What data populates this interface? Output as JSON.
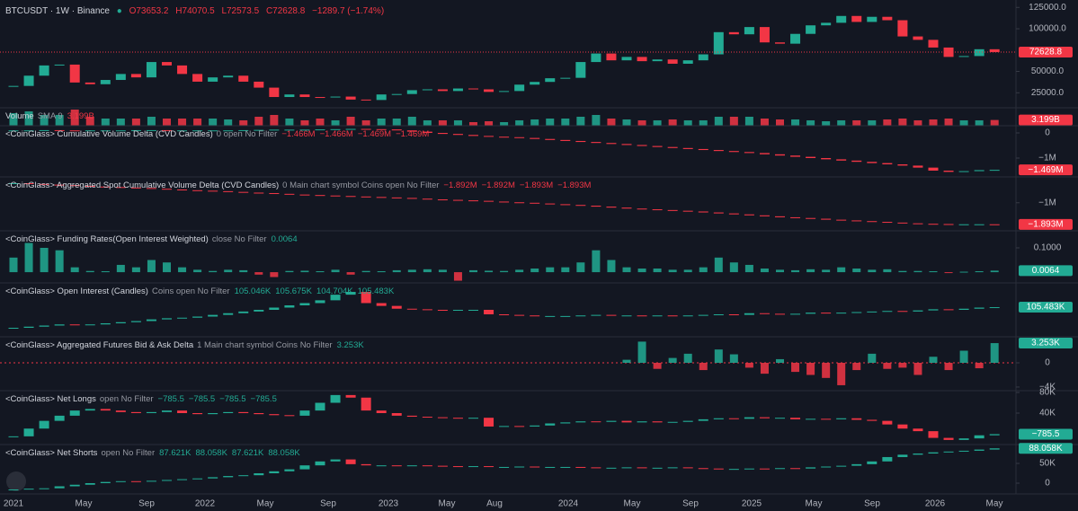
{
  "header": {
    "symbol": "BTCUSDT · 1W · Binance",
    "ohlc": [
      "O73653.2",
      "H74070.5",
      "L72573.5",
      "C72628.8",
      "−1289.7 (−1.74%)"
    ]
  },
  "theme": {
    "up": "#22ab94",
    "down": "#f23645"
  },
  "time_axis": {
    "labels": [
      "2021",
      "May",
      "Sep",
      "2022",
      "May",
      "Sep",
      "2023",
      "May",
      "Aug",
      "2024",
      "May",
      "Sep",
      "2025",
      "May",
      "Sep",
      "2026",
      "May"
    ]
  },
  "chart_data": [
    {
      "type": "candlestick",
      "values": [
        33000,
        45000,
        57000,
        58000,
        37000,
        35000,
        40000,
        47000,
        43000,
        61000,
        57000,
        47000,
        38000,
        43000,
        45000,
        38000,
        31000,
        20000,
        23000,
        20000,
        19500,
        20500,
        17000,
        16500,
        23000,
        23500,
        28000,
        29000,
        27000,
        30000,
        29000,
        26000,
        27000,
        34500,
        37700,
        42000,
        42500,
        61000,
        71000,
        63000,
        67000,
        62000,
        64000,
        59000,
        63000,
        70000,
        96000,
        93500,
        102000,
        84000,
        82500,
        94000,
        104000,
        107000,
        115000,
        108000,
        114000,
        110000,
        91000,
        87000,
        78000,
        67000,
        68000,
        76000,
        72628.8
      ],
      "ylim": [
        7400,
        133700
      ],
      "yticks": [
        {
          "value": 125000,
          "label": "125000.0"
        },
        {
          "value": 100000,
          "label": "100000.0"
        },
        {
          "value": 50000,
          "label": "50000.0"
        },
        {
          "value": 25000,
          "label": "25000.0"
        }
      ],
      "last_label": {
        "value": 72628.8,
        "label": "72628.8"
      },
      "label_color": "#f23645"
    },
    {
      "type": "bar",
      "title": "Volume",
      "params": "SMA 9",
      "legend_values": [
        "3.199B"
      ],
      "values": [
        7,
        8,
        6,
        6,
        9,
        5,
        4,
        4,
        4,
        5,
        4,
        4,
        4,
        4,
        3.5,
        3,
        5,
        6,
        4,
        3,
        4,
        3,
        5,
        3,
        4,
        4,
        5,
        3,
        3,
        3,
        2,
        2.5,
        2,
        3,
        3.5,
        4,
        4,
        5,
        6,
        4,
        3.5,
        3,
        3,
        3.5,
        3,
        3,
        5,
        5,
        5,
        4,
        3.5,
        3.5,
        3,
        2.5,
        3,
        3,
        3,
        3.5,
        4,
        3,
        3.5,
        4,
        3,
        3,
        3.199
      ],
      "ylim": [
        0,
        10
      ],
      "yticks": [],
      "last_label": {
        "value": 3.199,
        "label": "3.199B"
      },
      "label_color": "#f23645"
    },
    {
      "type": "candlestick",
      "title": "<CoinGlass> Cumulative Volume Delta (CVD Candles)",
      "params": "0 open No Filter",
      "legend_values": [
        "−1.466M",
        "−1.466M",
        "−1.469M",
        "−1.469M"
      ],
      "values": [
        0.1,
        0.1,
        0.11,
        0.1,
        0.09,
        0.1,
        0.1,
        0.1,
        0.11,
        0.11,
        0.1,
        0.1,
        0.1,
        0.1,
        0.1,
        0.11,
        0.12,
        0.13,
        0.13,
        0.13,
        0.14,
        0.15,
        0.16,
        0.15,
        0.14,
        0.1,
        0.05,
        0.0,
        -0.04,
        -0.08,
        -0.12,
        -0.15,
        -0.17,
        -0.2,
        -0.24,
        -0.28,
        -0.32,
        -0.36,
        -0.4,
        -0.44,
        -0.48,
        -0.52,
        -0.56,
        -0.6,
        -0.64,
        -0.68,
        -0.72,
        -0.76,
        -0.8,
        -0.85,
        -0.9,
        -0.95,
        -1.0,
        -1.05,
        -1.1,
        -1.15,
        -1.2,
        -1.25,
        -1.3,
        -1.38,
        -1.5,
        -1.55,
        -1.52,
        -1.48,
        -1.469
      ],
      "ylim": [
        -1.75,
        0.286
      ],
      "yticks": [
        0,
        {
          "value": -1,
          "label": "−1M"
        }
      ],
      "last_label": {
        "value": -1.469,
        "label": "−1.469M"
      },
      "label_color": "#f23645"
    },
    {
      "type": "candlestick",
      "title": "<CoinGlass> Aggregated Spot Cumulative Volume Delta (CVD Candles)",
      "params": "0 Main chart symbol Coins open No Filter",
      "legend_values": [
        "−1.892M",
        "−1.892M",
        "−1.893M",
        "−1.893M"
      ],
      "values": [
        -0.19,
        -0.22,
        -0.25,
        -0.27,
        -0.3,
        -0.33,
        -0.35,
        -0.37,
        -0.39,
        -0.42,
        -0.45,
        -0.48,
        -0.5,
        -0.52,
        -0.55,
        -0.58,
        -0.6,
        -0.63,
        -0.66,
        -0.68,
        -0.7,
        -0.72,
        -0.74,
        -0.76,
        -0.78,
        -0.8,
        -0.83,
        -0.86,
        -0.88,
        -0.9,
        -0.92,
        -0.95,
        -0.98,
        -1.0,
        -1.03,
        -1.06,
        -1.09,
        -1.12,
        -1.16,
        -1.2,
        -1.24,
        -1.27,
        -1.3,
        -1.33,
        -1.36,
        -1.4,
        -1.44,
        -1.48,
        -1.52,
        -1.56,
        -1.6,
        -1.63,
        -1.66,
        -1.7,
        -1.73,
        -1.76,
        -1.79,
        -1.82,
        -1.85,
        -1.87,
        -1.88,
        -1.89,
        -1.89,
        -1.89,
        -1.893
      ],
      "ylim": [
        -2.16,
        0.07
      ],
      "yticks": [
        {
          "value": -1,
          "label": "−1M"
        }
      ],
      "last_label": {
        "value": -1.893,
        "label": "−1.893M"
      },
      "label_color": "#f23645"
    },
    {
      "type": "bar",
      "title": "<CoinGlass> Funding Rates(Open Interest Weighted)",
      "params": "close No Filter",
      "legend_values": [
        "0.0064"
      ],
      "values": [
        0.06,
        0.12,
        0.1,
        0.09,
        0.02,
        0.005,
        0.004,
        0.03,
        0.02,
        0.05,
        0.04,
        0.02,
        0.01,
        0.005,
        0.01,
        0.008,
        -0.01,
        -0.02,
        0.005,
        0.006,
        0.004,
        0.01,
        -0.01,
        0.005,
        0.004,
        0.008,
        0.01,
        0.012,
        0.01,
        -0.035,
        0.008,
        0.006,
        0.005,
        0.01,
        0.015,
        0.02,
        0.02,
        0.04,
        0.09,
        0.05,
        0.02,
        0.015,
        0.015,
        0.01,
        0.01,
        0.02,
        0.06,
        0.04,
        0.03,
        0.015,
        0.01,
        0.008,
        0.012,
        0.01,
        0.02,
        0.015,
        0.01,
        0.012,
        0.005,
        0.005,
        0.004,
        -0.003,
        0.002,
        0.004,
        0.0064
      ],
      "ylim": [
        -0.044,
        0.17
      ],
      "yticks": [
        {
          "value": 0.1,
          "label": "0.1000"
        }
      ],
      "last_label": {
        "value": 0.0064,
        "label": "0.0064"
      },
      "label_color": "#22ab94"
    },
    {
      "type": "candlestick",
      "title": "<CoinGlass> Open Interest (Candles)",
      "params": "Coins open No Filter",
      "legend_values": [
        "105.046K",
        "105.675K",
        "104.704K",
        "105.483K"
      ],
      "values": [
        32,
        36,
        40,
        44,
        42,
        44,
        48,
        52,
        56,
        62,
        66,
        68,
        72,
        78,
        84,
        90,
        96,
        104,
        112,
        120,
        130,
        150,
        160,
        120,
        110,
        100,
        98,
        96,
        95,
        96,
        96,
        80,
        78,
        76,
        74,
        74,
        74,
        76,
        78,
        76,
        76,
        74,
        76,
        74,
        76,
        78,
        80,
        78,
        84,
        82,
        80,
        82,
        86,
        84,
        86,
        88,
        90,
        92,
        90,
        94,
        98,
        96,
        100,
        104,
        105.483
      ],
      "ylim": [
        0,
        192
      ],
      "yticks": [],
      "last_label": {
        "value": 105.483,
        "label": "105.483K"
      },
      "label_color": "#22ab94"
    },
    {
      "type": "bar",
      "title": "<CoinGlass> Aggregated Futures Bid & Ask Delta",
      "params": "1 Main chart symbol Coins No Filter",
      "legend_values": [
        "3.253K"
      ],
      "values": [
        null,
        null,
        null,
        null,
        null,
        null,
        null,
        null,
        null,
        null,
        null,
        null,
        null,
        null,
        null,
        null,
        null,
        null,
        null,
        null,
        null,
        null,
        null,
        null,
        null,
        null,
        null,
        null,
        null,
        null,
        null,
        null,
        null,
        null,
        null,
        null,
        null,
        null,
        null,
        null,
        0.5,
        3.5,
        -1.0,
        0.8,
        1.5,
        -1.2,
        2.2,
        1.4,
        -0.8,
        -1.8,
        0.6,
        -1.5,
        -2.0,
        -2.5,
        -3.7,
        -1.2,
        1.5,
        -1.0,
        -0.8,
        -2.0,
        1.0,
        -1.2,
        2.0,
        -0.9,
        3.253
      ],
      "ylim": [
        -4.6,
        4.3
      ],
      "yticks": [
        0,
        {
          "value": -4,
          "label": "−4K"
        }
      ],
      "last_label": {
        "value": 3.253,
        "label": "3.253K"
      },
      "label_color": "#22ab94"
    },
    {
      "type": "candlestick",
      "title": "<CoinGlass> Net Longs",
      "params": "open No Filter",
      "legend_values": [
        "−785.5",
        "−785.5",
        "−785.5",
        "−785.5"
      ],
      "values": [
        -5000,
        10000,
        25000,
        35000,
        45000,
        48000,
        45000,
        42000,
        40000,
        42000,
        45000,
        40000,
        38000,
        40000,
        42000,
        40000,
        38000,
        36000,
        35000,
        45000,
        60000,
        75000,
        70000,
        45000,
        40000,
        35000,
        33000,
        32000,
        31000,
        30000,
        31000,
        14000,
        15000,
        14000,
        16000,
        20000,
        22000,
        24000,
        23000,
        25000,
        22000,
        24000,
        22000,
        23000,
        25000,
        28000,
        30000,
        29000,
        32000,
        30000,
        31000,
        28000,
        29000,
        28000,
        30000,
        27000,
        25000,
        18000,
        10000,
        5000,
        -8000,
        -12000,
        -9000,
        -3000,
        -785.5
      ],
      "ylim": [
        -20900,
        83500
      ],
      "yticks": [
        {
          "value": 80000,
          "label": "80K"
        },
        {
          "value": 40000,
          "label": "40K"
        }
      ],
      "last_label": {
        "value": -785.5,
        "label": "−785.5"
      },
      "label_color": "#22ab94"
    },
    {
      "type": "candlestick",
      "title": "<CoinGlass> Net Shorts",
      "params": "open No Filter",
      "legend_values": [
        "87.621K",
        "88.058K",
        "87.621K",
        "88.058K"
      ],
      "values": [
        -16000,
        -14000,
        -13000,
        -8000,
        -4000,
        0,
        3000,
        5000,
        4000,
        6000,
        8000,
        10000,
        12000,
        15000,
        18000,
        20000,
        25000,
        30000,
        35000,
        45000,
        55000,
        60000,
        48000,
        45000,
        45000,
        44000,
        45000,
        44000,
        43000,
        42000,
        43000,
        41000,
        41000,
        42000,
        40000,
        41000,
        41000,
        40000,
        38000,
        39000,
        40000,
        38000,
        39000,
        40000,
        38000,
        37000,
        36000,
        36000,
        37000,
        36000,
        38000,
        37000,
        40000,
        42000,
        44000,
        48000,
        55000,
        66000,
        72000,
        75000,
        78000,
        80000,
        82000,
        85000,
        88058
      ],
      "ylim": [
        -27300,
        97700
      ],
      "yticks": [
        {
          "value": 50000,
          "label": "50K"
        },
        0
      ],
      "last_label": {
        "value": 88058,
        "label": "88.058K"
      },
      "label_color": "#22ab94"
    }
  ]
}
